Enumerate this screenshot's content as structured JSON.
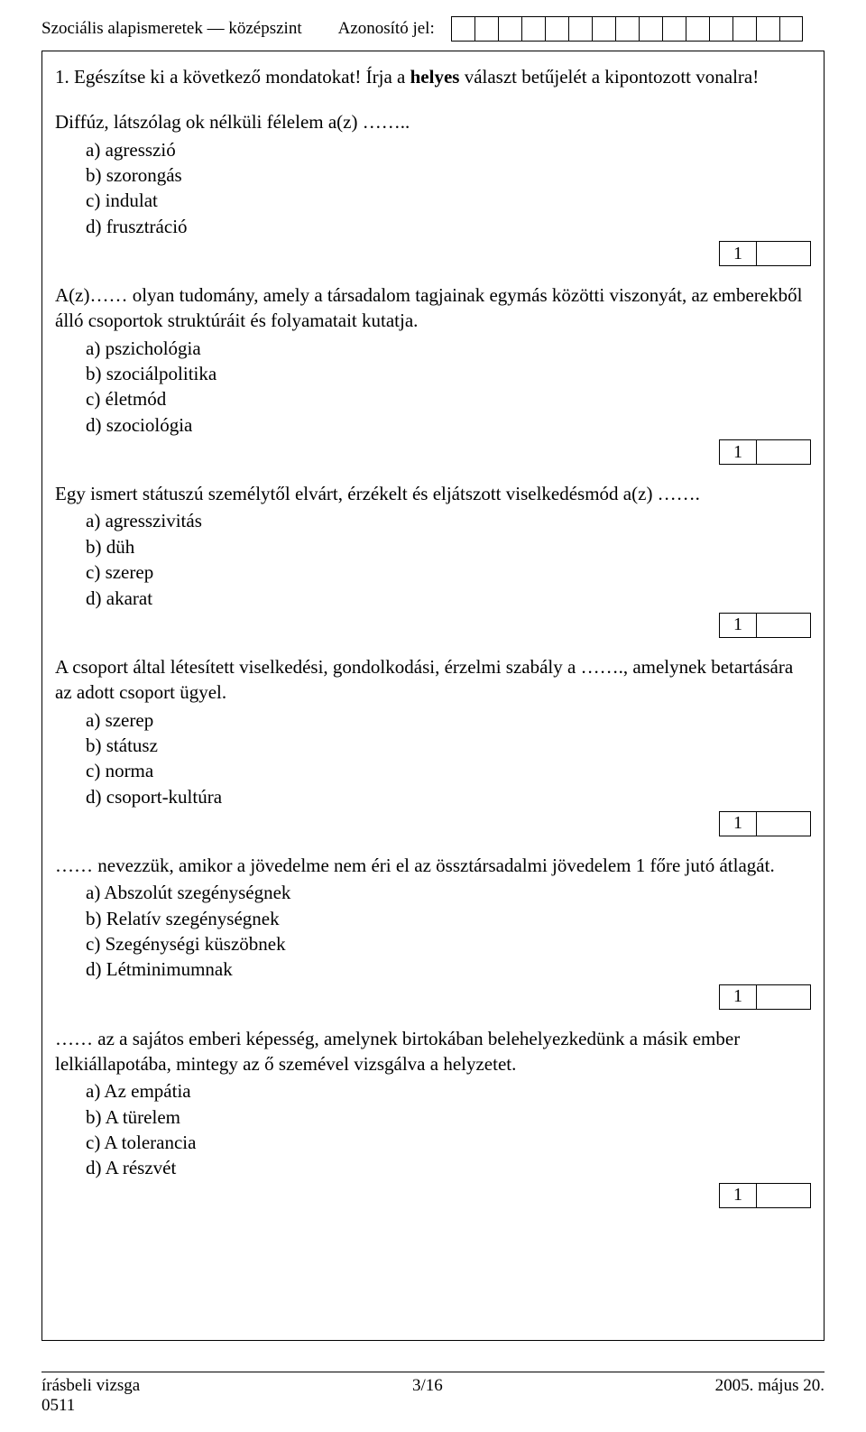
{
  "header": {
    "subject": "Szociális alapismeretek — középszint",
    "id_label": "Azonosító jel:",
    "id_cells": 15
  },
  "task": {
    "number": "1.",
    "instruction_a": "Egészítse ki a következő mondatokat! Írja a ",
    "instruction_b": "helyes",
    "instruction_c": " választ betűjelét a kipontozott vonalra!"
  },
  "questions": [
    {
      "text": "Diffúz, látszólag ok nélküli félelem a(z) ……..",
      "options": [
        "a)  agresszió",
        "b)  szorongás",
        "c)  indulat",
        "d)  frusztráció"
      ],
      "score": "1"
    },
    {
      "text": "A(z)…… olyan tudomány, amely a társadalom tagjainak egymás közötti viszonyát, az emberekből álló csoportok struktúráit és folyamatait kutatja.",
      "options": [
        "a)  pszichológia",
        "b)  szociálpolitika",
        "c)  életmód",
        "d)  szociológia"
      ],
      "score": "1"
    },
    {
      "text": "Egy ismert státuszú személytől elvárt, érzékelt és eljátszott viselkedésmód a(z) …….",
      "options": [
        "a)  agresszivitás",
        "b)  düh",
        "c)  szerep",
        "d)  akarat"
      ],
      "score": "1"
    },
    {
      "text": "A csoport által létesített viselkedési, gondolkodási, érzelmi szabály a ……., amelynek betartására az adott csoport ügyel.",
      "options": [
        "a)  szerep",
        "b)  státusz",
        "c)  norma",
        "d)  csoport-kultúra"
      ],
      "score": "1"
    },
    {
      "text": "…… nevezzük, amikor a jövedelme nem éri el az össztársadalmi jövedelem 1 főre jutó átlagát.",
      "options": [
        "a)  Abszolút szegénységnek",
        "b)  Relatív szegénységnek",
        "c)  Szegénységi küszöbnek",
        "d)  Létminimumnak"
      ],
      "score": "1"
    },
    {
      "text": "…… az a sajátos emberi képesség, amelynek birtokában belehelyezkedünk a másik ember lelkiállapotába, mintegy az ő szemével vizsgálva a helyzetet.",
      "options": [
        "a)  Az empátia",
        "b)  A türelem",
        "c)  A tolerancia",
        "d)  A részvét"
      ],
      "score": "1"
    }
  ],
  "footer": {
    "left_1": "írásbeli vizsga",
    "left_2": "0511",
    "mid": "3/16",
    "right": "2005. május 20."
  }
}
